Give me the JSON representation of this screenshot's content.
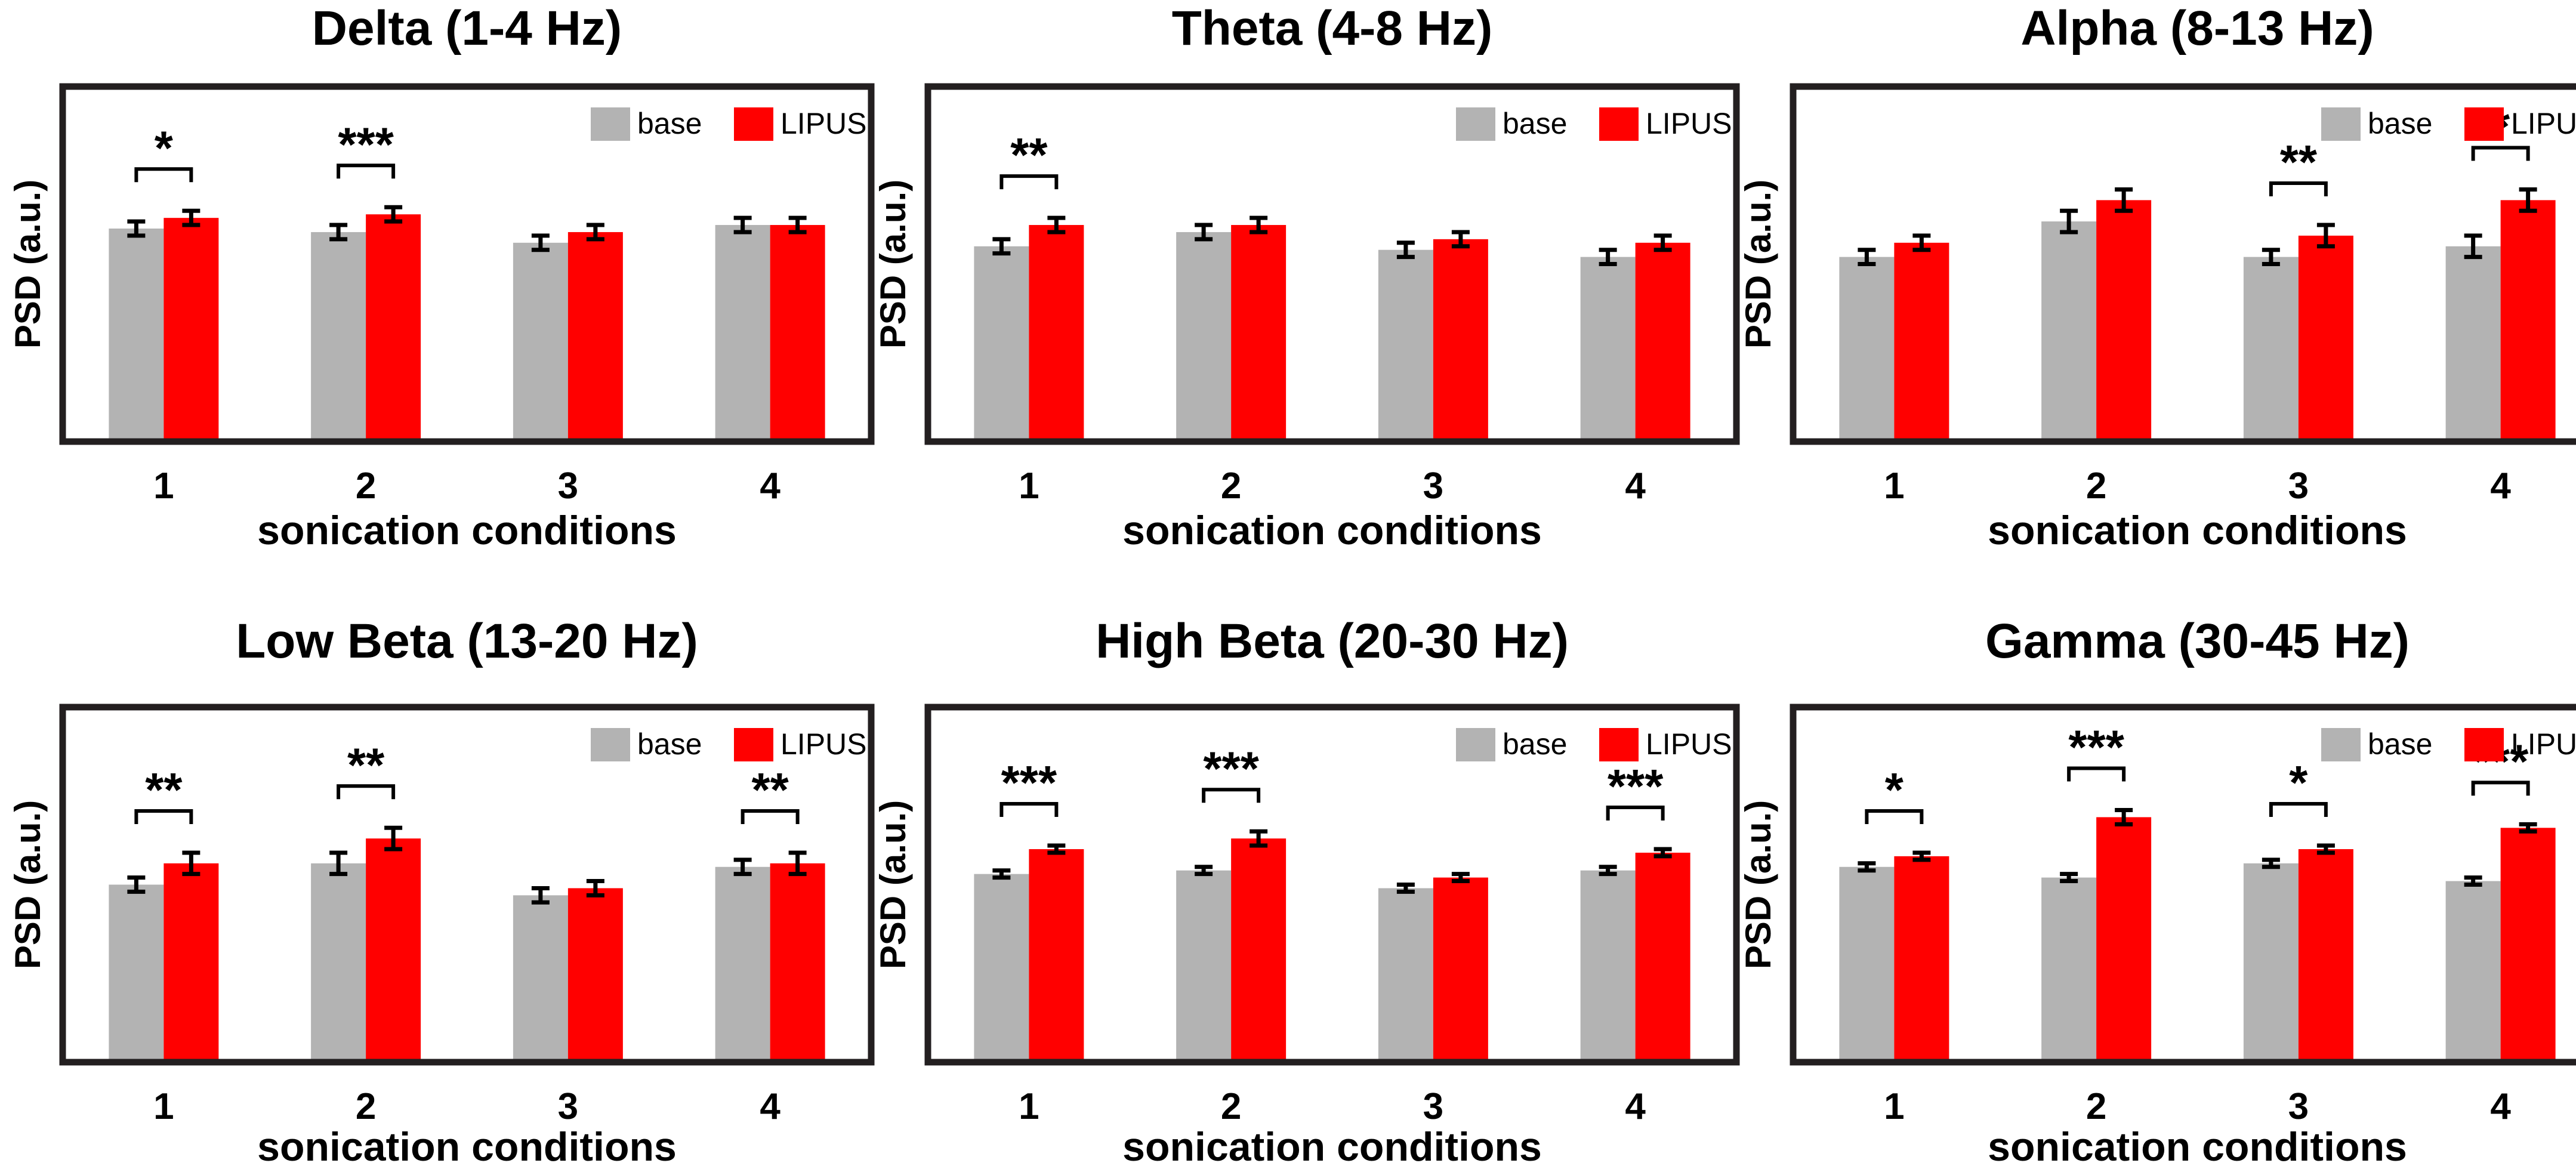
{
  "chart_data": [
    {
      "type": "bar",
      "title": "Delta (1-4 Hz)",
      "xlabel": "sonication conditions",
      "ylabel": "PSD (a.u.)",
      "categories": [
        "1",
        "2",
        "3",
        "4"
      ],
      "ylim": [
        0,
        1
      ],
      "series": [
        {
          "name": "base",
          "color": "#b3b3b3",
          "values": [
            0.6,
            0.59,
            0.56,
            0.61
          ],
          "errors": [
            0.02,
            0.02,
            0.02,
            0.02
          ]
        },
        {
          "name": "LIPUS",
          "color": "#ff0000",
          "values": [
            0.63,
            0.64,
            0.59,
            0.61
          ],
          "errors": [
            0.02,
            0.02,
            0.02,
            0.02
          ]
        }
      ],
      "significance": [
        {
          "category": "1",
          "label": "*"
        },
        {
          "category": "2",
          "label": "***"
        }
      ]
    },
    {
      "type": "bar",
      "title": "Theta (4-8 Hz)",
      "xlabel": "sonication conditions",
      "ylabel": "PSD (a.u.)",
      "categories": [
        "1",
        "2",
        "3",
        "4"
      ],
      "ylim": [
        0,
        1
      ],
      "series": [
        {
          "name": "base",
          "color": "#b3b3b3",
          "values": [
            0.55,
            0.59,
            0.54,
            0.52
          ],
          "errors": [
            0.02,
            0.02,
            0.02,
            0.02
          ]
        },
        {
          "name": "LIPUS",
          "color": "#ff0000",
          "values": [
            0.61,
            0.61,
            0.57,
            0.56
          ],
          "errors": [
            0.02,
            0.02,
            0.02,
            0.02
          ]
        }
      ],
      "significance": [
        {
          "category": "1",
          "label": "**"
        }
      ]
    },
    {
      "type": "bar",
      "title": "Alpha (8-13 Hz)",
      "xlabel": "sonication conditions",
      "ylabel": "PSD (a.u.)",
      "categories": [
        "1",
        "2",
        "3",
        "4"
      ],
      "ylim": [
        0,
        1
      ],
      "series": [
        {
          "name": "base",
          "color": "#b3b3b3",
          "values": [
            0.52,
            0.62,
            0.52,
            0.55
          ],
          "errors": [
            0.02,
            0.03,
            0.02,
            0.03
          ]
        },
        {
          "name": "LIPUS",
          "color": "#ff0000",
          "values": [
            0.56,
            0.68,
            0.58,
            0.68
          ],
          "errors": [
            0.02,
            0.03,
            0.03,
            0.03
          ]
        }
      ],
      "significance": [
        {
          "category": "3",
          "label": "**"
        },
        {
          "category": "4",
          "label": "*"
        }
      ]
    },
    {
      "type": "bar",
      "title": "Low Beta (13-20 Hz)",
      "xlabel": "sonication conditions",
      "ylabel": "PSD (a.u.)",
      "categories": [
        "1",
        "2",
        "3",
        "4"
      ],
      "ylim": [
        0,
        1
      ],
      "series": [
        {
          "name": "base",
          "color": "#b3b3b3",
          "values": [
            0.5,
            0.56,
            0.47,
            0.55
          ],
          "errors": [
            0.02,
            0.03,
            0.02,
            0.02
          ]
        },
        {
          "name": "LIPUS",
          "color": "#ff0000",
          "values": [
            0.56,
            0.63,
            0.49,
            0.56
          ],
          "errors": [
            0.03,
            0.03,
            0.02,
            0.03
          ]
        }
      ],
      "significance": [
        {
          "category": "1",
          "label": "**"
        },
        {
          "category": "2",
          "label": "**"
        },
        {
          "category": "4",
          "label": "**"
        }
      ]
    },
    {
      "type": "bar",
      "title": "High Beta (20-30 Hz)",
      "xlabel": "sonication conditions",
      "ylabel": "PSD (a.u.)",
      "categories": [
        "1",
        "2",
        "3",
        "4"
      ],
      "ylim": [
        0,
        1
      ],
      "series": [
        {
          "name": "base",
          "color": "#b3b3b3",
          "values": [
            0.53,
            0.54,
            0.49,
            0.54
          ],
          "errors": [
            0.01,
            0.01,
            0.01,
            0.01
          ]
        },
        {
          "name": "LIPUS",
          "color": "#ff0000",
          "values": [
            0.6,
            0.63,
            0.52,
            0.59
          ],
          "errors": [
            0.01,
            0.02,
            0.01,
            0.01
          ]
        }
      ],
      "significance": [
        {
          "category": "1",
          "label": "***"
        },
        {
          "category": "2",
          "label": "***"
        },
        {
          "category": "4",
          "label": "***"
        }
      ]
    },
    {
      "type": "bar",
      "title": "Gamma (30-45 Hz)",
      "xlabel": "sonication conditions",
      "ylabel": "PSD (a.u.)",
      "categories": [
        "1",
        "2",
        "3",
        "4"
      ],
      "ylim": [
        0,
        1
      ],
      "series": [
        {
          "name": "base",
          "color": "#b3b3b3",
          "values": [
            0.55,
            0.52,
            0.56,
            0.51
          ],
          "errors": [
            0.01,
            0.01,
            0.01,
            0.01
          ]
        },
        {
          "name": "LIPUS",
          "color": "#ff0000",
          "values": [
            0.58,
            0.69,
            0.6,
            0.66
          ],
          "errors": [
            0.01,
            0.02,
            0.01,
            0.01
          ]
        }
      ],
      "significance": [
        {
          "category": "1",
          "label": "*"
        },
        {
          "category": "2",
          "label": "***"
        },
        {
          "category": "3",
          "label": "*"
        },
        {
          "category": "4",
          "label": "***"
        }
      ]
    }
  ]
}
